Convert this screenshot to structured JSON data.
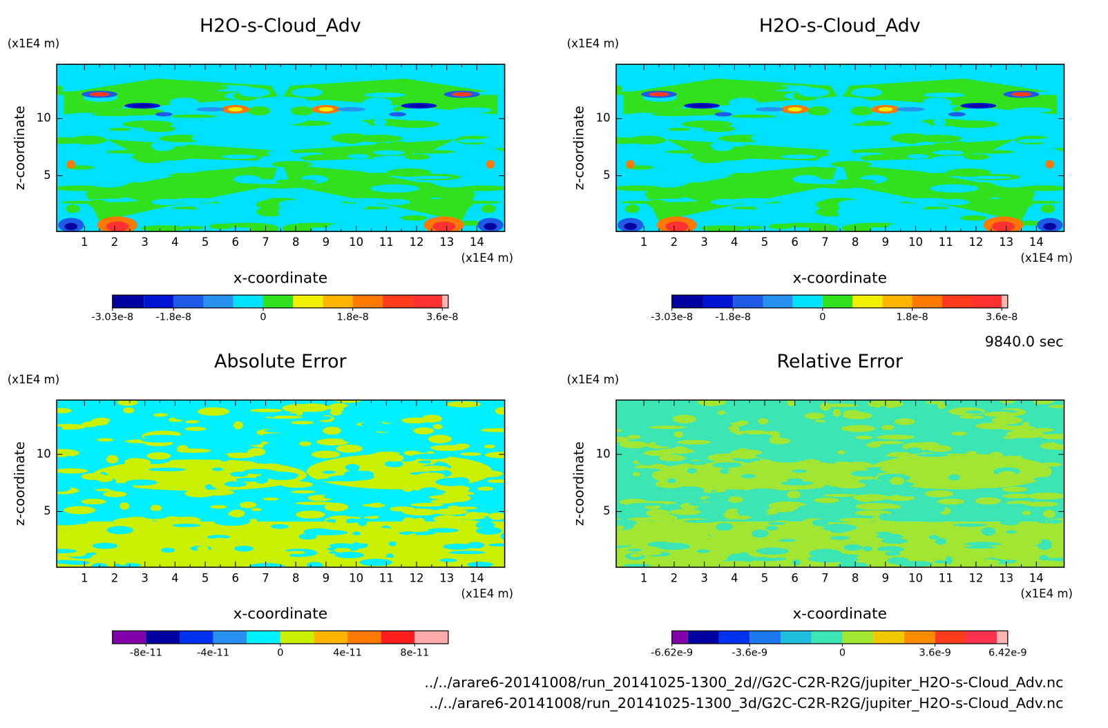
{
  "chart_data": [
    {
      "type": "contour",
      "title": "H2O-s-Cloud_Adv",
      "xlabel": "x-coordinate",
      "ylabel": "z-coordinate",
      "x_unit": "(x1E4 m)",
      "y_unit": "(x1E4 m)",
      "xlim": [
        0.08,
        14.92
      ],
      "ylim": [
        0.12,
        14.75
      ],
      "xticks": [
        1,
        2,
        3,
        4,
        5,
        6,
        7,
        8,
        9,
        10,
        11,
        12,
        13,
        14
      ],
      "yticks": [
        5,
        10
      ],
      "colorbar": {
        "levels": [
          -3.03e-08,
          -2.4e-08,
          -1.8e-08,
          -1.2e-08,
          -6e-09,
          0,
          6e-09,
          1.2e-08,
          1.8e-08,
          2.4e-08,
          3e-08,
          3.6e-08,
          3.72e-08
        ],
        "colors": [
          "#0000a0",
          "#0014d2",
          "#1e5ae6",
          "#2891f0",
          "#00e1ff",
          "#32e11e",
          "#f0f000",
          "#ffb400",
          "#ff7800",
          "#ff3c1e",
          "#ff3232",
          "#ffb4b4"
        ],
        "ticks": [
          -3.03e-08,
          -1.8e-08,
          0,
          1.8e-08,
          3.6e-08
        ]
      }
    },
    {
      "type": "contour",
      "title": "H2O-s-Cloud_Adv",
      "xlabel": "x-coordinate",
      "ylabel": "z-coordinate",
      "x_unit": "(x1E4 m)",
      "y_unit": "(x1E4 m)",
      "xlim": [
        0.08,
        14.92
      ],
      "ylim": [
        0.12,
        14.75
      ],
      "xticks": [
        1,
        2,
        3,
        4,
        5,
        6,
        7,
        8,
        9,
        10,
        11,
        12,
        13,
        14
      ],
      "yticks": [
        5,
        10
      ],
      "colorbar": {
        "levels": [
          -3.03e-08,
          -2.4e-08,
          -1.8e-08,
          -1.2e-08,
          -6e-09,
          0,
          6e-09,
          1.2e-08,
          1.8e-08,
          2.4e-08,
          3e-08,
          3.6e-08,
          3.72e-08
        ],
        "colors": [
          "#0000a0",
          "#0014d2",
          "#1e5ae6",
          "#2891f0",
          "#00e1ff",
          "#32e11e",
          "#f0f000",
          "#ffb400",
          "#ff7800",
          "#ff3c1e",
          "#ff3232",
          "#ffb4b4"
        ],
        "ticks": [
          -3.03e-08,
          -1.8e-08,
          0,
          1.8e-08,
          3.6e-08
        ]
      }
    },
    {
      "type": "contour",
      "title": "Absolute Error",
      "xlabel": "x-coordinate",
      "ylabel": "z-coordinate",
      "x_unit": "(x1E4 m)",
      "y_unit": "(x1E4 m)",
      "xlim": [
        0.08,
        14.92
      ],
      "ylim": [
        0.12,
        14.75
      ],
      "xticks": [
        1,
        2,
        3,
        4,
        5,
        6,
        7,
        8,
        9,
        10,
        11,
        12,
        13,
        14
      ],
      "yticks": [
        5,
        10
      ],
      "colorbar": {
        "levels": [
          -1e-10,
          -8e-11,
          -6e-11,
          -4e-11,
          -2e-11,
          0,
          2e-11,
          4e-11,
          6e-11,
          8e-11,
          1e-10
        ],
        "colors": [
          "#8200aa",
          "#0000a0",
          "#0032f0",
          "#2891f0",
          "#00f0ff",
          "#c8f000",
          "#ffb400",
          "#ff7800",
          "#ff1e1e",
          "#ffaaaa"
        ],
        "ticks": [
          -8e-11,
          -4e-11,
          0,
          4e-11,
          8e-11
        ]
      }
    },
    {
      "type": "contour",
      "title": "Relative Error",
      "xlabel": "x-coordinate",
      "ylabel": "z-coordinate",
      "x_unit": "(x1E4 m)",
      "y_unit": "(x1E4 m)",
      "xlim": [
        0.08,
        14.92
      ],
      "ylim": [
        0.12,
        14.75
      ],
      "xticks": [
        1,
        2,
        3,
        4,
        5,
        6,
        7,
        8,
        9,
        10,
        11,
        12,
        13,
        14
      ],
      "yticks": [
        5,
        10
      ],
      "colorbar": {
        "levels": [
          -6.62e-09,
          -6e-09,
          -4.8e-09,
          -3.6e-09,
          -2.4e-09,
          -1.2e-09,
          0,
          1.2e-09,
          2.4e-09,
          3.6e-09,
          4.8e-09,
          6e-09,
          6.42e-09
        ],
        "colors": [
          "#8200aa",
          "#0000a0",
          "#0032f0",
          "#1e78f0",
          "#1ebedc",
          "#3ce6b4",
          "#a0e632",
          "#f0c800",
          "#ff8c00",
          "#ff3c1e",
          "#ff3250",
          "#ffb4b4"
        ],
        "ticks": [
          -6.62e-09,
          -3.6e-09,
          0,
          3.6e-09,
          6.42e-09
        ]
      }
    }
  ],
  "time_label": "9840.0 sec",
  "footer": [
    "../../arare6-20141008/run_20141025-1300_2d//G2C-C2R-R2G/jupiter_H2O-s-Cloud_Adv.nc",
    "../../arare6-20141008/run_20141025-1300_3d/G2C-C2R-R2G/jupiter_H2O-s-Cloud_Adv.nc"
  ]
}
